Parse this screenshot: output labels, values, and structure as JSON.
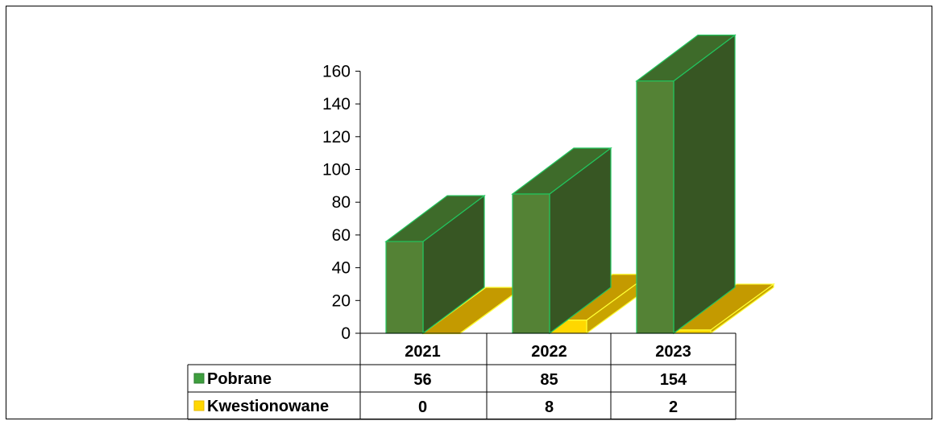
{
  "chart_data": {
    "type": "bar",
    "subtype": "3d-column-with-data-table",
    "categories": [
      "2021",
      "2022",
      "2023"
    ],
    "series": [
      {
        "name": "Pobrane",
        "values": [
          56,
          85,
          154
        ],
        "color": "#548235"
      },
      {
        "name": "Kwestionowane",
        "values": [
          0,
          8,
          2
        ],
        "color": "#FFD700"
      }
    ],
    "yticks": [
      0,
      20,
      40,
      60,
      80,
      100,
      120,
      140,
      160
    ],
    "ylim": [
      0,
      160
    ],
    "data_table": true,
    "legend": "in data table"
  }
}
